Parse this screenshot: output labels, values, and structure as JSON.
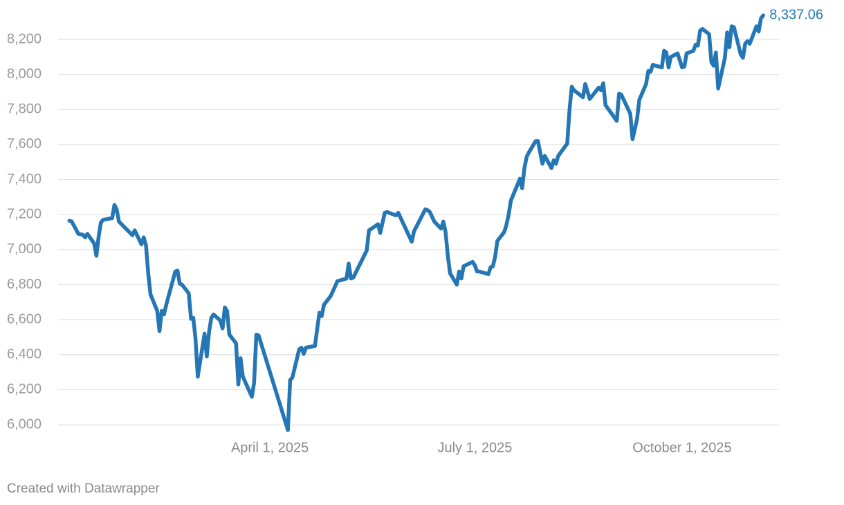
{
  "chart_data": {
    "type": "line",
    "xlim": [
      "2024-12-28",
      "2025-11-13"
    ],
    "xticks": [
      {
        "value": "2025-04-01",
        "label": "April 1, 2025"
      },
      {
        "value": "2025-07-01",
        "label": "July 1, 2025"
      },
      {
        "value": "2025-10-01",
        "label": "October 1, 2025"
      }
    ],
    "ylim": [
      5950,
      8350
    ],
    "yticks": [
      {
        "value": 6000,
        "label": "6,000"
      },
      {
        "value": 6200,
        "label": "6,200"
      },
      {
        "value": 6400,
        "label": "6,400"
      },
      {
        "value": 6600,
        "label": "6,600"
      },
      {
        "value": 6800,
        "label": "6,800"
      },
      {
        "value": 7000,
        "label": "7,000"
      },
      {
        "value": 7200,
        "label": "7,200"
      },
      {
        "value": 7400,
        "label": "7,400"
      },
      {
        "value": 7600,
        "label": "7,600"
      },
      {
        "value": 7800,
        "label": "7,800"
      },
      {
        "value": 8000,
        "label": "8,000"
      },
      {
        "value": 8200,
        "label": "8,200"
      }
    ],
    "grid": true,
    "color": "#2476b5",
    "x": [
      "2025-01-02",
      "2025-01-03",
      "2025-01-06",
      "2025-01-08",
      "2025-01-09",
      "2025-01-10",
      "2025-01-13",
      "2025-01-14",
      "2025-01-15",
      "2025-01-16",
      "2025-01-17",
      "2025-01-21",
      "2025-01-22",
      "2025-01-23",
      "2025-01-24",
      "2025-01-30",
      "2025-01-31",
      "2025-02-03",
      "2025-02-04",
      "2025-02-05",
      "2025-02-06",
      "2025-02-07",
      "2025-02-10",
      "2025-02-11",
      "2025-02-12",
      "2025-02-13",
      "2025-02-14",
      "2025-02-18",
      "2025-02-19",
      "2025-02-20",
      "2025-02-21",
      "2025-02-24",
      "2025-02-25",
      "2025-02-26",
      "2025-02-27",
      "2025-02-28",
      "2025-03-03",
      "2025-03-04",
      "2025-03-05",
      "2025-03-06",
      "2025-03-07",
      "2025-03-10",
      "2025-03-11",
      "2025-03-12",
      "2025-03-13",
      "2025-03-14",
      "2025-03-17",
      "2025-03-18",
      "2025-03-19",
      "2025-03-20",
      "2025-03-24",
      "2025-03-25",
      "2025-03-26",
      "2025-03-27",
      "2025-04-09",
      "2025-04-10",
      "2025-04-11",
      "2025-04-14",
      "2025-04-15",
      "2025-04-16",
      "2025-04-17",
      "2025-04-21",
      "2025-04-23",
      "2025-04-24",
      "2025-04-25",
      "2025-04-28",
      "2025-05-01",
      "2025-05-05",
      "2025-05-06",
      "2025-05-07",
      "2025-05-08",
      "2025-05-14",
      "2025-05-15",
      "2025-05-19",
      "2025-05-20",
      "2025-05-22",
      "2025-05-23",
      "2025-05-27",
      "2025-05-28",
      "2025-06-03",
      "2025-06-04",
      "2025-06-09",
      "2025-06-10",
      "2025-06-11",
      "2025-06-13",
      "2025-06-16",
      "2025-06-17",
      "2025-06-18",
      "2025-06-19",
      "2025-06-20",
      "2025-06-23",
      "2025-06-24",
      "2025-06-25",
      "2025-06-26",
      "2025-06-30",
      "2025-07-01",
      "2025-07-02",
      "2025-07-03",
      "2025-07-07",
      "2025-07-08",
      "2025-07-09",
      "2025-07-10",
      "2025-07-11",
      "2025-07-14",
      "2025-07-15",
      "2025-07-16",
      "2025-07-17",
      "2025-07-21",
      "2025-07-22",
      "2025-07-23",
      "2025-07-24",
      "2025-07-25",
      "2025-07-28",
      "2025-07-29",
      "2025-07-31",
      "2025-08-01",
      "2025-08-04",
      "2025-08-05",
      "2025-08-06",
      "2025-08-07",
      "2025-08-11",
      "2025-08-12",
      "2025-08-13",
      "2025-08-14",
      "2025-08-18",
      "2025-08-19",
      "2025-08-21",
      "2025-08-25",
      "2025-08-26",
      "2025-08-27",
      "2025-08-28",
      "2025-09-02",
      "2025-09-03",
      "2025-09-04",
      "2025-09-08",
      "2025-09-09",
      "2025-09-11",
      "2025-09-12",
      "2025-09-15",
      "2025-09-16",
      "2025-09-17",
      "2025-09-18",
      "2025-09-22",
      "2025-09-23",
      "2025-09-24",
      "2025-09-25",
      "2025-09-26",
      "2025-09-29",
      "2025-10-01",
      "2025-10-02",
      "2025-10-03",
      "2025-10-06",
      "2025-10-07",
      "2025-10-08",
      "2025-10-09",
      "2025-10-10",
      "2025-10-13",
      "2025-10-14",
      "2025-10-15",
      "2025-10-16",
      "2025-10-17",
      "2025-10-20",
      "2025-10-21",
      "2025-10-22",
      "2025-10-23",
      "2025-10-24",
      "2025-10-27",
      "2025-10-28",
      "2025-10-29",
      "2025-10-30",
      "2025-10-31",
      "2025-11-03",
      "2025-11-04",
      "2025-11-05",
      "2025-11-06"
    ],
    "values": [
      7165,
      7161,
      7090,
      7085,
      7070,
      7090,
      7035,
      6965,
      7075,
      7155,
      7170,
      7180,
      7255,
      7230,
      7160,
      7082,
      7110,
      7030,
      7070,
      7025,
      6865,
      6745,
      6650,
      6535,
      6650,
      6630,
      6685,
      6875,
      6880,
      6805,
      6800,
      6750,
      6605,
      6610,
      6490,
      6275,
      6520,
      6390,
      6530,
      6610,
      6630,
      6595,
      6550,
      6670,
      6650,
      6515,
      6465,
      6230,
      6380,
      6275,
      6160,
      6240,
      6515,
      6510,
      5970,
      6255,
      6270,
      6430,
      6440,
      6405,
      6440,
      6450,
      6640,
      6620,
      6685,
      6735,
      6820,
      6835,
      6920,
      6835,
      6840,
      6995,
      7110,
      7145,
      7095,
      7210,
      7215,
      7195,
      7210,
      7045,
      7105,
      7230,
      7225,
      7215,
      7160,
      7120,
      7160,
      7100,
      6965,
      6865,
      6800,
      6875,
      6835,
      6905,
      6930,
      6910,
      6875,
      6875,
      6860,
      6900,
      6905,
      6960,
      7050,
      7100,
      7140,
      7200,
      7280,
      7405,
      7350,
      7465,
      7530,
      7555,
      7620,
      7620,
      7490,
      7535,
      7465,
      7510,
      7490,
      7535,
      7605,
      7795,
      7930,
      7910,
      7870,
      7945,
      7860,
      7925,
      7910,
      7950,
      7825,
      7735,
      7890,
      7885,
      7775,
      7630,
      7745,
      7855,
      7945,
      8020,
      8015,
      8055,
      8040,
      8135,
      8125,
      8040,
      8100,
      8120,
      8040,
      8045,
      8120,
      8135,
      8170,
      8165,
      8250,
      8260,
      8230,
      8070,
      8050,
      8125,
      7920,
      8095,
      8240,
      8155,
      8275,
      8270,
      8115,
      8095,
      8175,
      8190,
      8175,
      8275,
      8245,
      8320,
      8337.06
    ],
    "value_labels": [
      null,
      null,
      null,
      null,
      null,
      null,
      null,
      null,
      null,
      null,
      null,
      null,
      null,
      null,
      null,
      null,
      null,
      null,
      null,
      null,
      null,
      null,
      null,
      null,
      null,
      null,
      null,
      null,
      null,
      null,
      null,
      null,
      null,
      null,
      null,
      null,
      null,
      null,
      null,
      null,
      null,
      null,
      null,
      null,
      null,
      null,
      null,
      null,
      null,
      null,
      null,
      null,
      null,
      null,
      null,
      null,
      null,
      null,
      null,
      null,
      null,
      null,
      null,
      null,
      null,
      null,
      null,
      null,
      null,
      null,
      null,
      null,
      null,
      null,
      null,
      null,
      null,
      null,
      null,
      null,
      null,
      null,
      null,
      null,
      null,
      null,
      null,
      null,
      null,
      null,
      null,
      null,
      null,
      null,
      null,
      null,
      null,
      null,
      null,
      null,
      null,
      null,
      null,
      null,
      null,
      null,
      null,
      null,
      null,
      null,
      null,
      null,
      null,
      null,
      null,
      null,
      null,
      null,
      null,
      null,
      null,
      null,
      null,
      null,
      null,
      null,
      null,
      null,
      null,
      null,
      null,
      null,
      null,
      null,
      null,
      null,
      null,
      null,
      null,
      null,
      null,
      null,
      null,
      null,
      null,
      null,
      null,
      null,
      null,
      null,
      null,
      null,
      null,
      null,
      null,
      null,
      null,
      null,
      null,
      null,
      null,
      null,
      null,
      null,
      null,
      null,
      null,
      null,
      null,
      null,
      null,
      null,
      null,
      null,
      "8,337.06"
    ],
    "source": "Created with Datawrapper"
  }
}
